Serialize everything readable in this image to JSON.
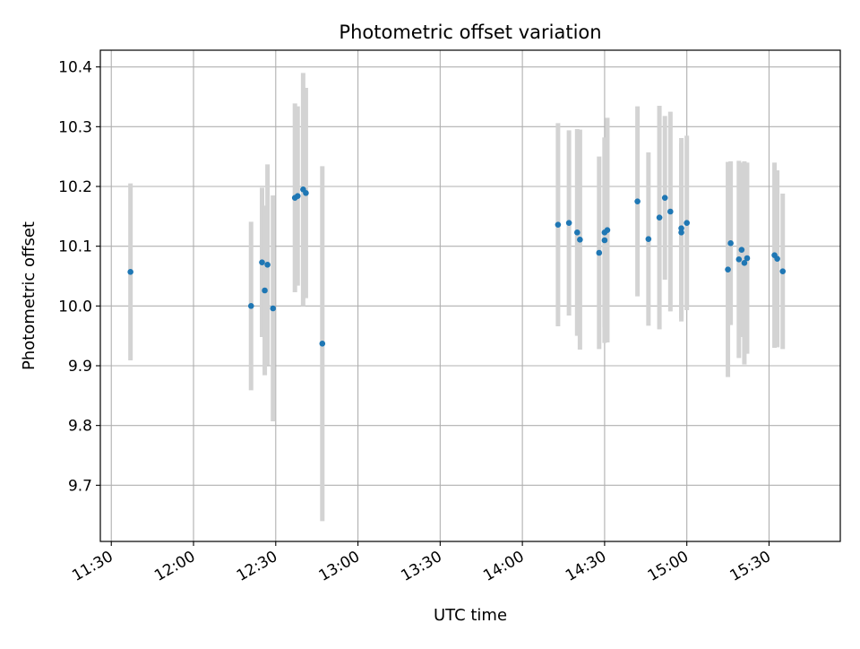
{
  "chart_data": {
    "type": "scatter",
    "title": "Photometric offset variation",
    "xlabel": "UTC time",
    "ylabel": "Photometric offset",
    "x_axis": {
      "kind": "time",
      "range": [
        "11:26",
        "15:56"
      ],
      "ticks": [
        "11:30",
        "12:00",
        "12:30",
        "13:00",
        "13:30",
        "14:00",
        "14:30",
        "15:00",
        "15:30"
      ]
    },
    "y_axis": {
      "range": [
        9.606,
        10.428
      ],
      "ticks": [
        "9.7",
        "9.8",
        "9.9",
        "10.0",
        "10.1",
        "10.2",
        "10.3",
        "10.4"
      ]
    },
    "grid": true,
    "colors": {
      "point": "#1f77b4",
      "errorbar": "#d3d3d3",
      "grid": "#b0b0b0"
    },
    "series": [
      {
        "points": [
          {
            "x": "11:37",
            "y": 10.057,
            "err": 0.148
          },
          {
            "x": "12:21",
            "y": 10.0,
            "err": 0.141
          },
          {
            "x": "12:25",
            "y": 10.073,
            "err": 0.125
          },
          {
            "x": "12:26",
            "y": 10.026,
            "err": 0.142
          },
          {
            "x": "12:27",
            "y": 10.069,
            "err": 0.168
          },
          {
            "x": "12:29",
            "y": 9.996,
            "err": 0.189
          },
          {
            "x": "12:37",
            "y": 10.181,
            "err": 0.158
          },
          {
            "x": "12:38",
            "y": 10.184,
            "err": 0.15
          },
          {
            "x": "12:40",
            "y": 10.195,
            "err": 0.195
          },
          {
            "x": "12:41",
            "y": 10.189,
            "err": 0.176
          },
          {
            "x": "12:47",
            "y": 9.937,
            "err": 0.297
          },
          {
            "x": "14:13",
            "y": 10.136,
            "err": 0.17
          },
          {
            "x": "14:17",
            "y": 10.139,
            "err": 0.155
          },
          {
            "x": "14:20",
            "y": 10.123,
            "err": 0.173
          },
          {
            "x": "14:21",
            "y": 10.111,
            "err": 0.184
          },
          {
            "x": "14:28",
            "y": 10.089,
            "err": 0.161
          },
          {
            "x": "14:30",
            "y": 10.123,
            "err": 0.159
          },
          {
            "x": "14:30",
            "y": 10.11,
            "err": 0.172
          },
          {
            "x": "14:31",
            "y": 10.127,
            "err": 0.188
          },
          {
            "x": "14:42",
            "y": 10.175,
            "err": 0.159
          },
          {
            "x": "14:46",
            "y": 10.112,
            "err": 0.145
          },
          {
            "x": "14:50",
            "y": 10.148,
            "err": 0.187
          },
          {
            "x": "14:52",
            "y": 10.181,
            "err": 0.137
          },
          {
            "x": "14:54",
            "y": 10.158,
            "err": 0.167
          },
          {
            "x": "14:58",
            "y": 10.13,
            "err": 0.151
          },
          {
            "x": "14:58",
            "y": 10.123,
            "err": 0.149
          },
          {
            "x": "15:00",
            "y": 10.139,
            "err": 0.146
          },
          {
            "x": "15:15",
            "y": 10.061,
            "err": 0.18
          },
          {
            "x": "15:16",
            "y": 10.105,
            "err": 0.137
          },
          {
            "x": "15:19",
            "y": 10.078,
            "err": 0.165
          },
          {
            "x": "15:20",
            "y": 10.094,
            "err": 0.146
          },
          {
            "x": "15:21",
            "y": 10.072,
            "err": 0.17
          },
          {
            "x": "15:22",
            "y": 10.08,
            "err": 0.16
          },
          {
            "x": "15:32",
            "y": 10.085,
            "err": 0.155
          },
          {
            "x": "15:33",
            "y": 10.079,
            "err": 0.148
          },
          {
            "x": "15:35",
            "y": 10.058,
            "err": 0.13
          }
        ]
      }
    ]
  }
}
